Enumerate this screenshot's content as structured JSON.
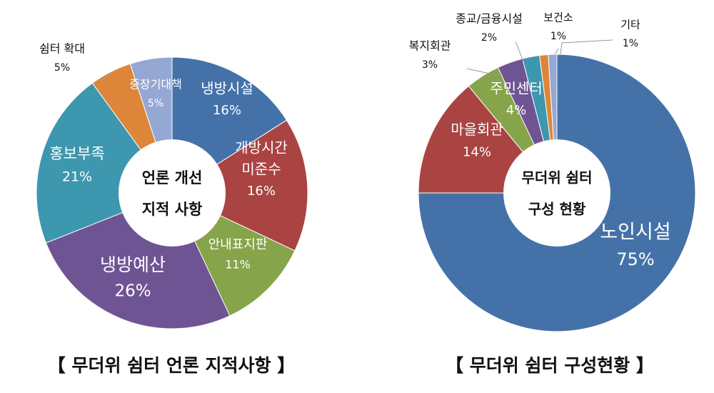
{
  "chart_data": [
    {
      "type": "pie",
      "center_text": [
        "언론 개선",
        "지적 사항"
      ],
      "caption": "【 무더위 쉼터 언론 지적사항 】",
      "slices": [
        {
          "label": "냉방시설",
          "value": 16,
          "value_text": "16%",
          "color": "#4472a8"
        },
        {
          "label": "개방시간\n미준수",
          "value": 16,
          "value_text": "16%",
          "color": "#a94442"
        },
        {
          "label": "안내표지판",
          "value": 11,
          "value_text": "11%",
          "color": "#86a44a"
        },
        {
          "label": "냉방예산",
          "value": 26,
          "value_text": "26%",
          "color": "#6f5494"
        },
        {
          "label": "홍보부족",
          "value": 21,
          "value_text": "21%",
          "color": "#3d97ae"
        },
        {
          "label": "쉼터 확대",
          "value": 5,
          "value_text": "5%",
          "color": "#dd8639"
        },
        {
          "label": "중장기대책",
          "value": 5,
          "value_text": "5%",
          "color": "#95a8d4"
        }
      ]
    },
    {
      "type": "pie",
      "center_text": [
        "무더위 쉼터",
        "구성 현황"
      ],
      "caption": "【 무더위 쉼터 구성현황 】",
      "slices": [
        {
          "label": "노인시설",
          "value": 75,
          "value_text": "75%",
          "color": "#4472a8"
        },
        {
          "label": "마을회관",
          "value": 14,
          "value_text": "14%",
          "color": "#a94442"
        },
        {
          "label": "주민센터",
          "value": 4,
          "value_text": "4%",
          "color": "#86a44a"
        },
        {
          "label": "복지회관",
          "value": 3,
          "value_text": "3%",
          "color": "#6f5494"
        },
        {
          "label": "종교/금융시설",
          "value": 2,
          "value_text": "2%",
          "color": "#3d97ae"
        },
        {
          "label": "보건소",
          "value": 1,
          "value_text": "1%",
          "color": "#dd8639"
        },
        {
          "label": "기타",
          "value": 1,
          "value_text": "1%",
          "color": "#95a8d4"
        }
      ]
    }
  ]
}
